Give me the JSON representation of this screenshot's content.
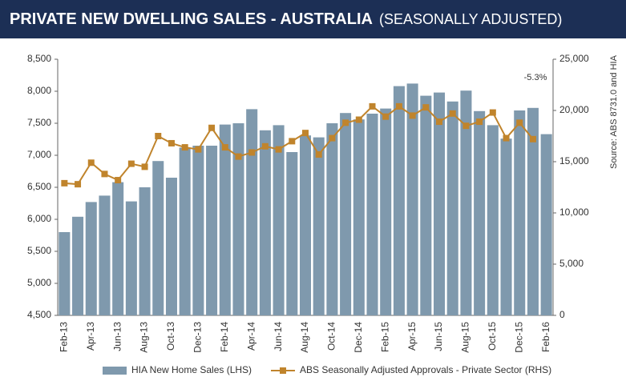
{
  "chart_data": {
    "type": "bar",
    "title": "PRIVATE NEW DWELLING SALES -  AUSTRALIA",
    "subtitle": "(SEASONALLY ADJUSTED)",
    "source": "Source: ABS 8731.0 and HIA",
    "annotation": "-5.3%",
    "categories": [
      "Feb-13",
      null,
      "Apr-13",
      null,
      "Jun-13",
      null,
      "Aug-13",
      null,
      "Oct-13",
      null,
      "Dec-13",
      null,
      "Feb-14",
      null,
      "Apr-14",
      null,
      "Jun-14",
      null,
      "Aug-14",
      null,
      "Oct-14",
      null,
      "Dec-14",
      null,
      "Feb-15",
      null,
      "Apr-15",
      null,
      "Jun-15",
      null,
      "Aug-15",
      null,
      "Oct-15",
      null,
      "Dec-15",
      null,
      "Feb-16"
    ],
    "series": [
      {
        "name": "HIA New Home Sales (LHS)",
        "type": "bar",
        "axis": "y",
        "color": "#7f99ad",
        "values": [
          5800,
          6040,
          6270,
          6370,
          6580,
          6280,
          6500,
          6910,
          6650,
          7120,
          7150,
          7150,
          7480,
          7500,
          7720,
          7390,
          7470,
          7050,
          7310,
          7280,
          7500,
          7660,
          7560,
          7650,
          7730,
          8080,
          8120,
          7930,
          7980,
          7840,
          8010,
          7690,
          7470,
          7260,
          7700,
          7740,
          7330
        ]
      },
      {
        "name": "ABS Seasonally Adjusted Approvals - Private Sector (RHS)",
        "type": "line",
        "axis": "y2",
        "color": "#c0842c",
        "values": [
          12900,
          12800,
          14900,
          13800,
          13200,
          14800,
          14500,
          17500,
          16800,
          16400,
          16200,
          18300,
          16400,
          15500,
          15900,
          16500,
          16200,
          17000,
          17800,
          15700,
          17300,
          18800,
          19100,
          20400,
          19400,
          20400,
          19500,
          20300,
          18900,
          19700,
          18500,
          18900,
          19800,
          17300,
          18800,
          17200,
          null
        ]
      }
    ],
    "ylim": [
      4500,
      8500
    ],
    "yticks": [
      {
        "value": 4500,
        "label": "4,500"
      },
      {
        "value": 5000,
        "label": "5,000"
      },
      {
        "value": 5500,
        "label": "5,500"
      },
      {
        "value": 6000,
        "label": "6,000"
      },
      {
        "value": 6500,
        "label": "6,500"
      },
      {
        "value": 7000,
        "label": "7,000"
      },
      {
        "value": 7500,
        "label": "7,500"
      },
      {
        "value": 8000,
        "label": "8,000"
      },
      {
        "value": 8500,
        "label": "8,500"
      }
    ],
    "y2lim": [
      0,
      25000
    ],
    "y2ticks": [
      0,
      {
        "value": 5000,
        "label": "5,000"
      },
      {
        "value": 10000,
        "label": "10,000"
      },
      {
        "value": 15000,
        "label": "15,000"
      },
      {
        "value": 20000,
        "label": "20,000"
      },
      {
        "value": 25000,
        "label": "25,000"
      }
    ],
    "grid": false
  }
}
